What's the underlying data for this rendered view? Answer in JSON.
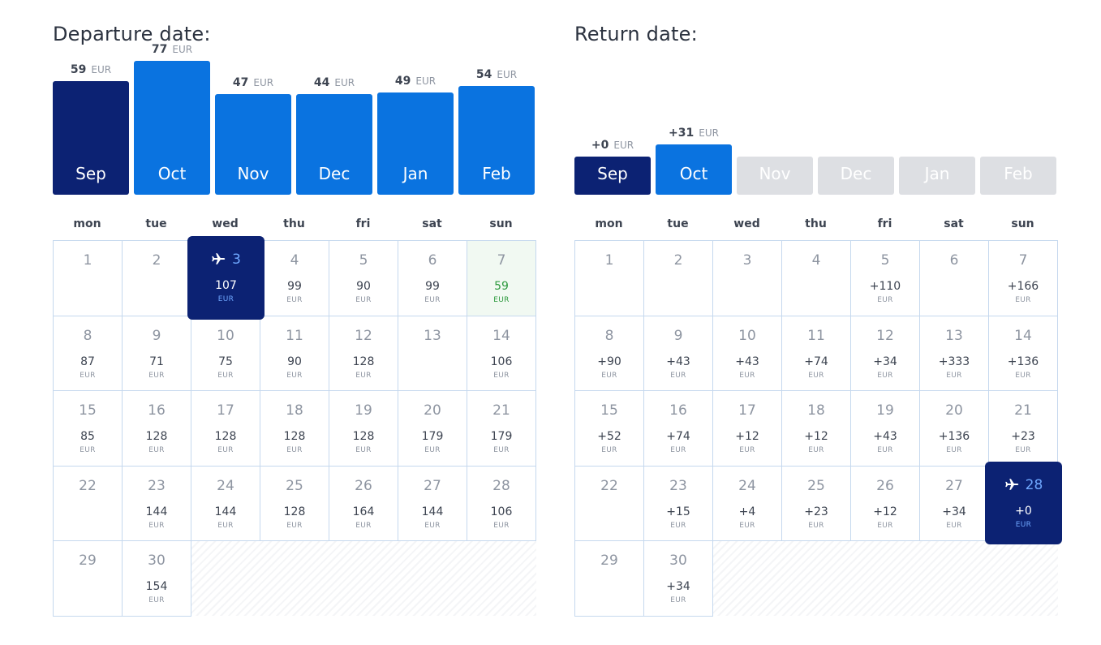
{
  "departure": {
    "title": "Departure date:",
    "months": [
      {
        "label": "Sep",
        "price": "59",
        "currency": "EUR",
        "state": "selected",
        "fill": 0.68
      },
      {
        "label": "Oct",
        "price": "77",
        "currency": "EUR",
        "state": "normal",
        "fill": 0.8
      },
      {
        "label": "Nov",
        "price": "47",
        "currency": "EUR",
        "state": "normal",
        "fill": 0.6
      },
      {
        "label": "Dec",
        "price": "44",
        "currency": "EUR",
        "state": "normal",
        "fill": 0.6
      },
      {
        "label": "Jan",
        "price": "49",
        "currency": "EUR",
        "state": "normal",
        "fill": 0.61
      },
      {
        "label": "Feb",
        "price": "54",
        "currency": "EUR",
        "state": "normal",
        "fill": 0.65
      }
    ],
    "weekdays": [
      "mon",
      "tue",
      "wed",
      "thu",
      "fri",
      "sat",
      "sun"
    ],
    "days": [
      {
        "day": "1",
        "price": "",
        "currency": ""
      },
      {
        "day": "2",
        "price": "",
        "currency": ""
      },
      {
        "day": "3",
        "price": "107",
        "currency": "EUR",
        "state": "selected"
      },
      {
        "day": "4",
        "price": "99",
        "currency": "EUR"
      },
      {
        "day": "5",
        "price": "90",
        "currency": "EUR"
      },
      {
        "day": "6",
        "price": "99",
        "currency": "EUR"
      },
      {
        "day": "7",
        "price": "59",
        "currency": "EUR",
        "state": "best"
      },
      {
        "day": "8",
        "price": "87",
        "currency": "EUR"
      },
      {
        "day": "9",
        "price": "71",
        "currency": "EUR"
      },
      {
        "day": "10",
        "price": "75",
        "currency": "EUR"
      },
      {
        "day": "11",
        "price": "90",
        "currency": "EUR"
      },
      {
        "day": "12",
        "price": "128",
        "currency": "EUR"
      },
      {
        "day": "13",
        "price": "",
        "currency": ""
      },
      {
        "day": "14",
        "price": "106",
        "currency": "EUR"
      },
      {
        "day": "15",
        "price": "85",
        "currency": "EUR"
      },
      {
        "day": "16",
        "price": "128",
        "currency": "EUR"
      },
      {
        "day": "17",
        "price": "128",
        "currency": "EUR"
      },
      {
        "day": "18",
        "price": "128",
        "currency": "EUR"
      },
      {
        "day": "19",
        "price": "128",
        "currency": "EUR"
      },
      {
        "day": "20",
        "price": "179",
        "currency": "EUR"
      },
      {
        "day": "21",
        "price": "179",
        "currency": "EUR"
      },
      {
        "day": "22",
        "price": "",
        "currency": ""
      },
      {
        "day": "23",
        "price": "144",
        "currency": "EUR"
      },
      {
        "day": "24",
        "price": "144",
        "currency": "EUR"
      },
      {
        "day": "25",
        "price": "128",
        "currency": "EUR"
      },
      {
        "day": "26",
        "price": "164",
        "currency": "EUR"
      },
      {
        "day": "27",
        "price": "144",
        "currency": "EUR"
      },
      {
        "day": "28",
        "price": "106",
        "currency": "EUR"
      },
      {
        "day": "29",
        "price": "",
        "currency": ""
      },
      {
        "day": "30",
        "price": "154",
        "currency": "EUR"
      }
    ]
  },
  "return": {
    "title": "Return date:",
    "months": [
      {
        "label": "Sep",
        "price": "+0",
        "currency": "EUR",
        "state": "selected",
        "fill": 0.23
      },
      {
        "label": "Oct",
        "price": "+31",
        "currency": "EUR",
        "state": "normal",
        "fill": 0.3
      },
      {
        "label": "Nov",
        "price": "",
        "currency": "",
        "state": "disabled",
        "fill": 0.23
      },
      {
        "label": "Dec",
        "price": "",
        "currency": "",
        "state": "disabled",
        "fill": 0.23
      },
      {
        "label": "Jan",
        "price": "",
        "currency": "",
        "state": "disabled",
        "fill": 0.23
      },
      {
        "label": "Feb",
        "price": "",
        "currency": "",
        "state": "disabled",
        "fill": 0.23
      }
    ],
    "weekdays": [
      "mon",
      "tue",
      "wed",
      "thu",
      "fri",
      "sat",
      "sun"
    ],
    "days": [
      {
        "day": "1",
        "price": "",
        "currency": ""
      },
      {
        "day": "2",
        "price": "",
        "currency": ""
      },
      {
        "day": "3",
        "price": "",
        "currency": ""
      },
      {
        "day": "4",
        "price": "",
        "currency": ""
      },
      {
        "day": "5",
        "price": "+110",
        "currency": "EUR"
      },
      {
        "day": "6",
        "price": "",
        "currency": ""
      },
      {
        "day": "7",
        "price": "+166",
        "currency": "EUR"
      },
      {
        "day": "8",
        "price": "+90",
        "currency": "EUR"
      },
      {
        "day": "9",
        "price": "+43",
        "currency": "EUR"
      },
      {
        "day": "10",
        "price": "+43",
        "currency": "EUR"
      },
      {
        "day": "11",
        "price": "+74",
        "currency": "EUR"
      },
      {
        "day": "12",
        "price": "+34",
        "currency": "EUR"
      },
      {
        "day": "13",
        "price": "+333",
        "currency": "EUR"
      },
      {
        "day": "14",
        "price": "+136",
        "currency": "EUR"
      },
      {
        "day": "15",
        "price": "+52",
        "currency": "EUR"
      },
      {
        "day": "16",
        "price": "+74",
        "currency": "EUR"
      },
      {
        "day": "17",
        "price": "+12",
        "currency": "EUR"
      },
      {
        "day": "18",
        "price": "+12",
        "currency": "EUR"
      },
      {
        "day": "19",
        "price": "+43",
        "currency": "EUR"
      },
      {
        "day": "20",
        "price": "+136",
        "currency": "EUR"
      },
      {
        "day": "21",
        "price": "+23",
        "currency": "EUR"
      },
      {
        "day": "22",
        "price": "",
        "currency": ""
      },
      {
        "day": "23",
        "price": "+15",
        "currency": "EUR"
      },
      {
        "day": "24",
        "price": "+4",
        "currency": "EUR"
      },
      {
        "day": "25",
        "price": "+23",
        "currency": "EUR"
      },
      {
        "day": "26",
        "price": "+12",
        "currency": "EUR"
      },
      {
        "day": "27",
        "price": "+34",
        "currency": "EUR"
      },
      {
        "day": "28",
        "price": "+0",
        "currency": "EUR",
        "state": "selected"
      },
      {
        "day": "29",
        "price": "",
        "currency": ""
      },
      {
        "day": "30",
        "price": "+34",
        "currency": "EUR"
      }
    ]
  },
  "icons": {
    "selected_day": "airplane-icon"
  },
  "colors": {
    "accent": "#0a73e0",
    "selected": "#0c2273",
    "disabled": "#dddfe3",
    "best_price": "#2d9a3e",
    "grid_border": "#c5d8ee"
  }
}
